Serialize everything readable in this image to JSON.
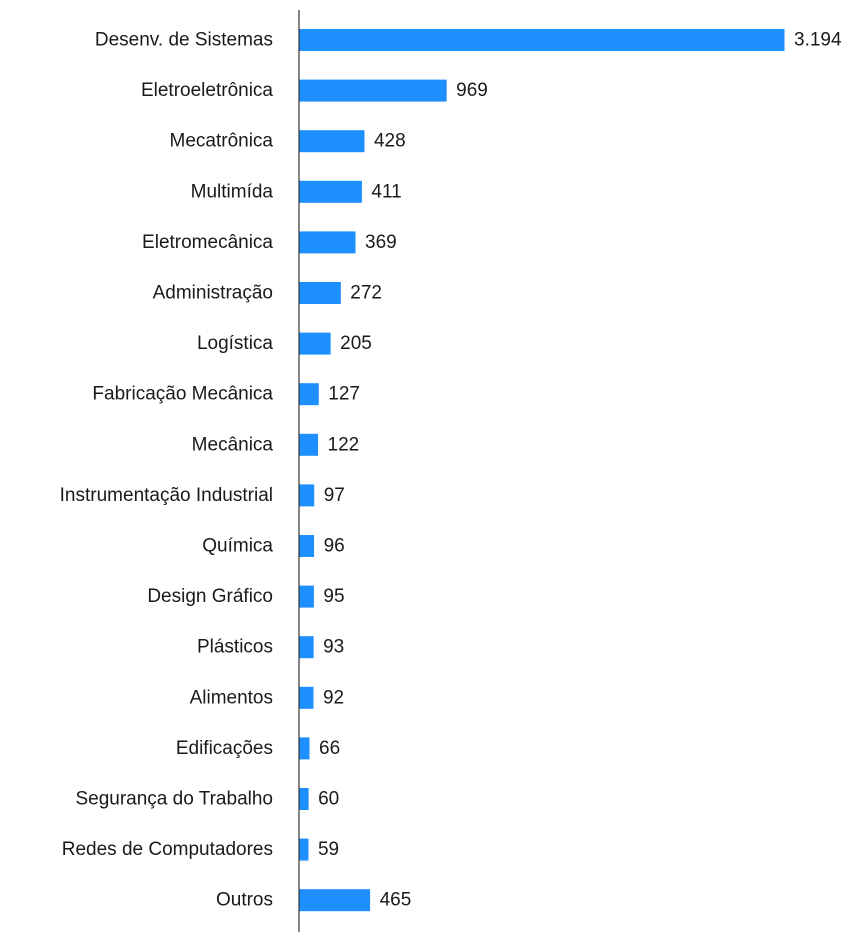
{
  "chart_data": {
    "type": "bar",
    "orientation": "horizontal",
    "categories": [
      "Desenv. de Sistemas",
      "Eletroeletrônica",
      "Mecatrônica",
      "Multimída",
      "Eletromecânica",
      "Administração",
      "Logística",
      "Fabricação Mecânica",
      "Mecânica",
      "Instrumentação Industrial",
      "Química",
      "Design Gráfico",
      "Plásticos",
      "Alimentos",
      "Edificações",
      "Segurança do Trabalho",
      "Redes de Computadores",
      "Outros"
    ],
    "values": [
      3194,
      969,
      428,
      411,
      369,
      272,
      205,
      127,
      122,
      97,
      96,
      95,
      93,
      92,
      66,
      60,
      59,
      465
    ],
    "value_labels": [
      "3.194",
      "969",
      "428",
      "411",
      "369",
      "272",
      "205",
      "127",
      "122",
      "97",
      "96",
      "95",
      "93",
      "92",
      "66",
      "60",
      "59",
      "465"
    ],
    "xlim": [
      0,
      3194
    ],
    "grid": false,
    "legend": "none",
    "bar_color": "#1E8FFF",
    "axis_color": "#333333"
  }
}
